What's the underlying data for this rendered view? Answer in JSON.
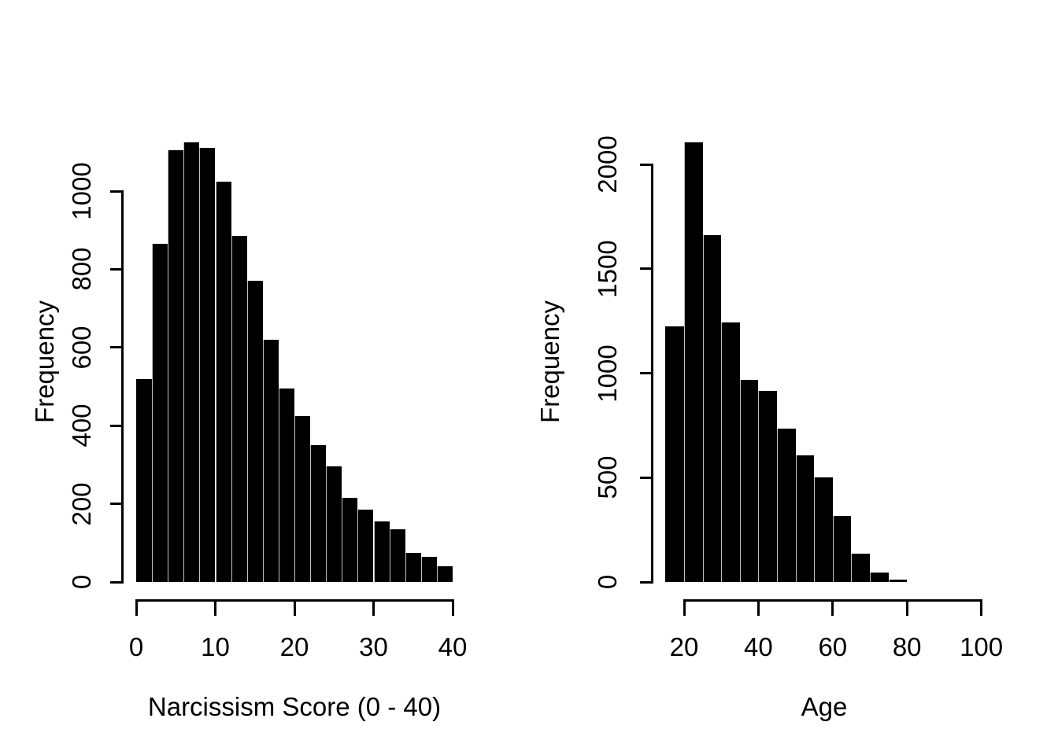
{
  "page": {
    "background": "#ffffff",
    "description": "Two side-by-side black histograms in base-R plot style"
  },
  "colors": {
    "bar_fill": "#000000",
    "bar_seam": "#c0c0c0",
    "axis": "#000000",
    "text": "#000000"
  },
  "chart_data": [
    {
      "type": "bar",
      "subtype": "histogram",
      "title": "",
      "xlabel": "Narcissism Score (0 - 40)",
      "ylabel": "Frequency",
      "bin_start": 0,
      "bin_width": 2,
      "bins": [
        "0-2",
        "2-4",
        "4-6",
        "6-8",
        "8-10",
        "10-12",
        "12-14",
        "14-16",
        "16-18",
        "18-20",
        "20-22",
        "22-24",
        "24-26",
        "26-28",
        "28-30",
        "30-32",
        "32-34",
        "34-36",
        "36-38",
        "38-40"
      ],
      "values": [
        520,
        865,
        1105,
        1125,
        1110,
        1025,
        885,
        770,
        620,
        495,
        425,
        350,
        295,
        215,
        185,
        155,
        135,
        75,
        65,
        40
      ],
      "xticks": [
        0,
        10,
        20,
        30,
        40
      ],
      "yticks": [
        0,
        200,
        400,
        600,
        800,
        1000
      ],
      "xlim": [
        0,
        40
      ],
      "ylim": [
        0,
        1130
      ],
      "grid": false,
      "legend": "none"
    },
    {
      "type": "bar",
      "subtype": "histogram",
      "title": "",
      "xlabel": "Age",
      "ylabel": "Frequency",
      "bin_start": 15,
      "bin_width": 5,
      "bins": [
        "15-20",
        "20-25",
        "25-30",
        "30-35",
        "35-40",
        "40-45",
        "45-50",
        "50-55",
        "55-60",
        "60-65",
        "65-70",
        "70-75",
        "75-80"
      ],
      "values": [
        1225,
        2105,
        1660,
        1245,
        970,
        915,
        735,
        605,
        500,
        315,
        135,
        45,
        10
      ],
      "xticks": [
        20,
        40,
        60,
        80,
        100
      ],
      "yticks": [
        0,
        500,
        1000,
        1500,
        2000
      ],
      "xlim": [
        15,
        100
      ],
      "ylim": [
        0,
        2110
      ],
      "grid": false,
      "legend": "none"
    }
  ]
}
